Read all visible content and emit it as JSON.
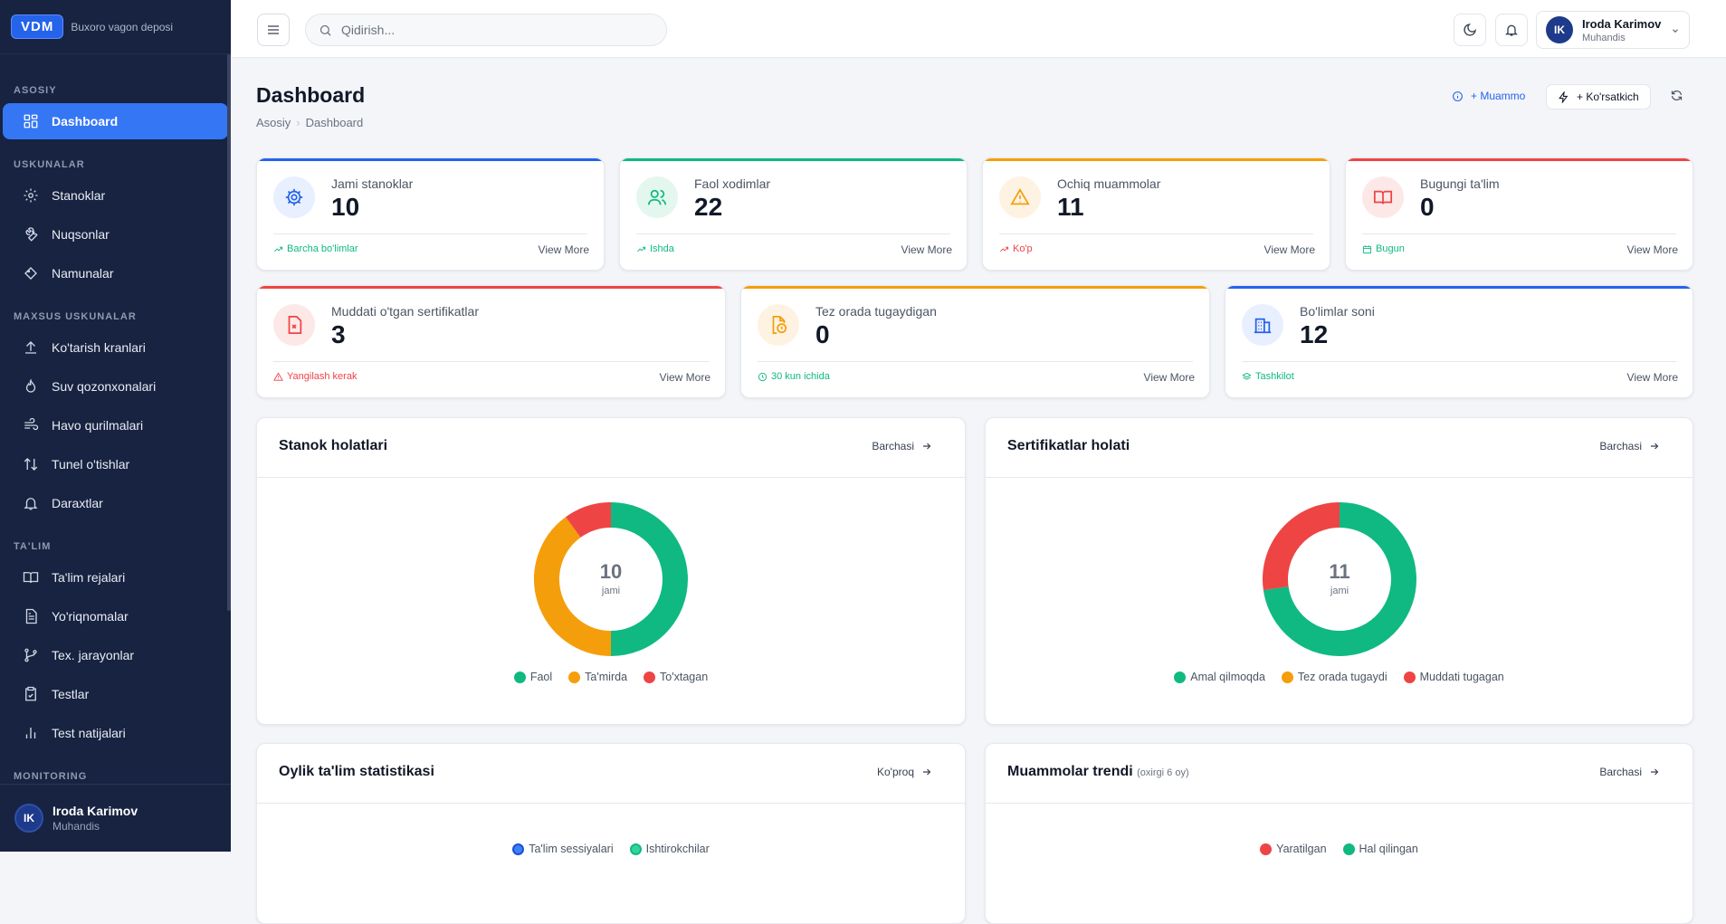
{
  "brand": {
    "logo": "VDM",
    "name": "Buxoro vagon deposi"
  },
  "sidebar": {
    "sections": {
      "asosiy": "ASOSIY",
      "uskunalar": "USKUNALAR",
      "maxsus": "MAXSUS USKUNALAR",
      "talim": "TA'LIM",
      "monitoring": "MONITORING"
    },
    "items": {
      "dashboard": "Dashboard",
      "stanoklar": "Stanoklar",
      "nuqsonlar": "Nuqsonlar",
      "namunalar": "Namunalar",
      "kranlar": "Ko'tarish kranlari",
      "qozonxonalar": "Suv qozonxonalari",
      "havo": "Havo qurilmalari",
      "tunel": "Tunel o'tishlar",
      "daraxtlar": "Daraxtlar",
      "rejalar": "Ta'lim rejalari",
      "yoriqnomalar": "Yo'riqnomalar",
      "jarayonlar": "Tex. jarayonlar",
      "testlar": "Testlar",
      "natijalar": "Test natijalari"
    },
    "user": {
      "initials": "IK",
      "name": "Iroda Karimov",
      "role": "Muhandis"
    }
  },
  "topbar": {
    "search_placeholder": "Qidirish...",
    "user": {
      "initials": "IK",
      "name": "Iroda Karimov",
      "role": "Muhandis"
    }
  },
  "page": {
    "title": "Dashboard",
    "breadcrumb": [
      "Asosiy",
      "Dashboard"
    ],
    "actions": {
      "muammo": "+ Muammo",
      "korsatkich": "+ Ko'rsatkich"
    }
  },
  "colors": {
    "blue": "#2563eb",
    "green": "#10b981",
    "amber": "#f59e0b",
    "red": "#ef4444",
    "sidebar": "#172340"
  },
  "stats": [
    {
      "label": "Jami stanoklar",
      "value": "10",
      "foot": "Barcha bo'limlar",
      "more": "View More"
    },
    {
      "label": "Faol xodimlar",
      "value": "22",
      "foot": "Ishda",
      "more": "View More"
    },
    {
      "label": "Ochiq muammolar",
      "value": "11",
      "foot": "Ko'p",
      "more": "View More"
    },
    {
      "label": "Bugungi ta'lim",
      "value": "0",
      "foot": "Bugun",
      "more": "View More"
    },
    {
      "label": "Muddati o'tgan sertifikatlar",
      "value": "3",
      "foot": "Yangilash kerak",
      "more": "View More"
    },
    {
      "label": "Tez orada tugaydigan",
      "value": "0",
      "foot": "30 kun ichida",
      "more": "View More"
    },
    {
      "label": "Bo'limlar soni",
      "value": "12",
      "foot": "Tashkilot",
      "more": "View More"
    }
  ],
  "panels": {
    "stanok": {
      "title": "Stanok holatlari",
      "link": "Barchasi"
    },
    "sertifikat": {
      "title": "Sertifikatlar holati",
      "link": "Barchasi"
    },
    "oylik": {
      "title": "Oylik ta'lim statistikasi",
      "link": "Ko'proq",
      "legend": [
        "Ta'lim sessiyalari",
        "Ishtirokchilar"
      ]
    },
    "trend": {
      "title": "Muammolar trendi",
      "subtitle": "(oxirgi 6 oy)",
      "link": "Barchasi",
      "legend": [
        "Yaratilgan",
        "Hal qilingan"
      ]
    }
  },
  "chart_data": [
    {
      "type": "pie",
      "title": "Stanok holatlari",
      "center_value": "10",
      "center_label": "jami",
      "categories": [
        "Faol",
        "Ta'mirda",
        "To'xtagan"
      ],
      "values": [
        5,
        4,
        1
      ],
      "colors": [
        "#10b981",
        "#f59e0b",
        "#ef4444"
      ]
    },
    {
      "type": "pie",
      "title": "Sertifikatlar holati",
      "center_value": "11",
      "center_label": "jami",
      "categories": [
        "Amal qilmoqda",
        "Tez orada tugaydi",
        "Muddati tugagan"
      ],
      "values": [
        8,
        0,
        3
      ],
      "colors": [
        "#10b981",
        "#f59e0b",
        "#ef4444"
      ]
    }
  ]
}
